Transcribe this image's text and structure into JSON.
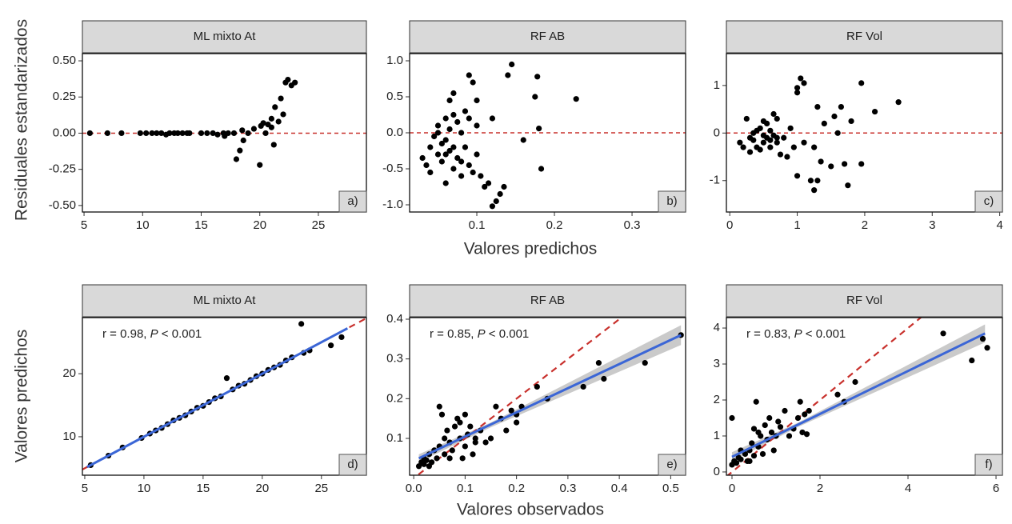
{
  "figure": {
    "rows": [
      {
        "ylabel": "Residuales estandarizados",
        "xlabel": "Valores predichos"
      },
      {
        "ylabel": "Valores predichos",
        "xlabel": "Valores observados"
      }
    ]
  },
  "chart_data": [
    {
      "type": "scatter",
      "title": "ML mixto At",
      "panel_label": "a)",
      "point_color": "#000000",
      "reference_line": {
        "y": 0,
        "color": "#c8302c"
      },
      "xlim": [
        4.86,
        29.1
      ],
      "ylim": [
        -0.545,
        0.55
      ],
      "xticks": [
        5,
        10,
        15,
        20,
        25
      ],
      "yticks": [
        {
          "value": -0.5,
          "label": "-0.50"
        },
        {
          "value": -0.25,
          "label": "-0.25"
        },
        {
          "value": 0,
          "label": "0.00"
        },
        {
          "value": 0.25,
          "label": "0.25"
        },
        {
          "value": 0.5,
          "label": "0.50"
        }
      ],
      "x": [
        5.5,
        7,
        8.2,
        9.8,
        10.3,
        10.8,
        11.2,
        11.6,
        12,
        12.3,
        12.7,
        13,
        13.4,
        13.8,
        14,
        15,
        15.5,
        16,
        16.4,
        16.9,
        17.3,
        17.8,
        18,
        18.3,
        18.6,
        19,
        19.5,
        20,
        20.1,
        20.3,
        20.7,
        21,
        21.2,
        21.3,
        21.6,
        21.8,
        22,
        22.2,
        22.4,
        22.7,
        23,
        17,
        18.5,
        21,
        20.5
      ],
      "y": [
        0,
        0,
        0,
        0,
        0,
        0,
        0,
        0,
        -0.01,
        0,
        0,
        0,
        0,
        0,
        0,
        0,
        0,
        0,
        -0.01,
        0,
        0,
        0,
        -0.18,
        -0.12,
        -0.05,
        0,
        0.03,
        -0.22,
        0.05,
        0.07,
        0.06,
        0.1,
        -0.08,
        0.18,
        0.08,
        0.24,
        0.13,
        0.35,
        0.37,
        0.33,
        0.35,
        -0.02,
        0.02,
        0.04,
        0
      ]
    },
    {
      "type": "scatter",
      "title": "RF AB",
      "panel_label": "b)",
      "point_color": "#000000",
      "reference_line": {
        "y": 0,
        "color": "#c8302c"
      },
      "xlim": [
        0.0134,
        0.369
      ],
      "ylim": [
        -1.1,
        1.1
      ],
      "xticks": [
        0.1,
        0.2,
        0.3
      ],
      "yticks": [
        {
          "value": -1,
          "label": "-1.0"
        },
        {
          "value": -0.5,
          "label": "-0.5"
        },
        {
          "value": 0,
          "label": "0.0"
        },
        0.5,
        {
          "value": 1,
          "label": "1.0"
        }
      ],
      "x": [
        0.03,
        0.035,
        0.04,
        0.04,
        0.045,
        0.05,
        0.05,
        0.055,
        0.055,
        0.06,
        0.06,
        0.06,
        0.065,
        0.065,
        0.07,
        0.07,
        0.075,
        0.075,
        0.08,
        0.08,
        0.085,
        0.085,
        0.09,
        0.09,
        0.095,
        0.095,
        0.1,
        0.1,
        0.105,
        0.11,
        0.115,
        0.12,
        0.125,
        0.13,
        0.135,
        0.05,
        0.06,
        0.07,
        0.08,
        0.09,
        0.14,
        0.145,
        0.16,
        0.175,
        0.178,
        0.18,
        0.183,
        0.228,
        0.12,
        0.1,
        0.065,
        0.07
      ],
      "y": [
        -0.35,
        -0.45,
        -0.2,
        -0.55,
        -0.05,
        0.1,
        -0.3,
        -0.15,
        -0.4,
        0.2,
        -0.1,
        -0.7,
        0.05,
        -0.25,
        0.25,
        -0.5,
        0.15,
        -0.35,
        0,
        -0.6,
        0.3,
        -0.2,
        0.8,
        -0.45,
        0.7,
        -0.55,
        0.1,
        -0.3,
        -0.6,
        -0.75,
        -0.7,
        0.2,
        -0.95,
        -0.85,
        -0.75,
        0,
        -0.3,
        -0.2,
        -0.4,
        0.2,
        0.8,
        0.95,
        -0.1,
        0.5,
        0.78,
        0.06,
        -0.5,
        0.47,
        -1.02,
        0.45,
        0.45,
        0.55
      ]
    },
    {
      "type": "scatter",
      "title": "RF Vol",
      "panel_label": "c)",
      "point_color": "#000000",
      "reference_line": {
        "y": 0,
        "color": "#c8302c"
      },
      "xlim": [
        -0.05,
        4.04
      ],
      "ylim": [
        -1.66,
        1.67
      ],
      "xticks": [
        0,
        1,
        2,
        3,
        4
      ],
      "yticks": [
        -1,
        0,
        1
      ],
      "x": [
        0.15,
        0.2,
        0.25,
        0.3,
        0.35,
        0.4,
        0.45,
        0.5,
        0.5,
        0.55,
        0.55,
        0.6,
        0.6,
        0.65,
        0.65,
        0.7,
        0.7,
        0.75,
        0.8,
        0.85,
        0.9,
        0.95,
        1.0,
        1.0,
        1.05,
        1.1,
        1.1,
        1.2,
        1.25,
        1.3,
        1.3,
        1.35,
        1.4,
        1.5,
        1.55,
        1.6,
        1.65,
        1.7,
        1.75,
        1.8,
        1.95,
        1.95,
        2.15,
        2.5,
        0.4,
        0.5,
        0.3,
        0.45,
        0.35,
        0.6,
        0.7,
        1.25,
        1.0
      ],
      "y": [
        -0.2,
        -0.3,
        0.3,
        -0.4,
        -0.15,
        -0.3,
        0.1,
        -0.2,
        0.25,
        -0.1,
        0.2,
        -0.3,
        0.05,
        0.4,
        -0.05,
        -0.2,
        0.3,
        -0.45,
        -0.1,
        -0.5,
        0.1,
        -0.3,
        -0.9,
        0.95,
        1.15,
        1.05,
        -0.2,
        -1.0,
        -1.2,
        -1.0,
        0.55,
        -0.6,
        0.2,
        -0.7,
        0.35,
        0,
        0.55,
        -0.65,
        -1.1,
        0.25,
        1.05,
        -0.65,
        0.45,
        0.65,
        0.05,
        -0.05,
        -0.1,
        -0.35,
        0,
        -0.15,
        -0.1,
        -0.3,
        0.85
      ]
    },
    {
      "type": "scatter",
      "title": "ML mixto At",
      "panel_label": "d)",
      "point_color": "#000000",
      "annotation": [
        "r  = 0.98, ",
        "P",
        " < 0.001"
      ],
      "reference_line": {
        "slope": 1,
        "intercept": 0,
        "color": "#c8302c"
      },
      "fit": {
        "color": "#3b66d6",
        "x": [
          5.2,
          27.2
        ],
        "y": [
          5.2,
          27.2
        ]
      },
      "xlim": [
        4.8,
        28.8
      ],
      "ylim": [
        3.9,
        28.9
      ],
      "xticks": [
        5,
        10,
        15,
        20,
        25
      ],
      "yticks": [
        10,
        20
      ],
      "x": [
        5.5,
        7,
        8.2,
        9.8,
        10.5,
        11,
        11.5,
        12,
        12.5,
        13,
        13.5,
        14,
        14.5,
        15,
        15.5,
        16,
        16.5,
        17,
        17.5,
        18,
        18.5,
        19,
        19.5,
        20,
        20.5,
        21,
        21.5,
        22,
        22.5,
        23.3,
        23.5,
        24,
        25.8,
        26.7
      ],
      "y": [
        5.5,
        7,
        8.3,
        9.8,
        10.5,
        11,
        11.4,
        12,
        12.6,
        13,
        13.4,
        14,
        14.6,
        14.9,
        15.5,
        16.1,
        16.4,
        19.3,
        17.5,
        18.1,
        18.4,
        19,
        19.6,
        20,
        20.6,
        21,
        21.4,
        22.1,
        22.6,
        27.9,
        23.3,
        23.7,
        24.5,
        25.8
      ]
    },
    {
      "type": "scatter",
      "title": "RF AB",
      "panel_label": "e)",
      "point_color": "#000000",
      "annotation": [
        "r  = 0.85, ",
        "P",
        " < 0.001"
      ],
      "reference_line": {
        "slope": 1,
        "intercept": 0,
        "color": "#c8302c"
      },
      "fit": {
        "color": "#3b66d6",
        "x": [
          0.01,
          0.52
        ],
        "y": [
          0.05,
          0.36
        ]
      },
      "band": {
        "color": "#bdbdbd",
        "x": [
          0.01,
          0.15,
          0.52
        ],
        "lower": [
          0.04,
          0.128,
          0.335
        ],
        "upper": [
          0.06,
          0.14,
          0.385
        ]
      },
      "xlim": [
        -0.008,
        0.529
      ],
      "ylim": [
        0.0074,
        0.404
      ],
      "xticks": [
        {
          "value": 0,
          "label": "0.0"
        },
        0.1,
        0.2,
        0.3,
        0.4,
        0.5
      ],
      "yticks": [
        0.1,
        0.2,
        0.3,
        0.4
      ],
      "x": [
        0.01,
        0.015,
        0.02,
        0.02,
        0.025,
        0.03,
        0.035,
        0.04,
        0.045,
        0.05,
        0.05,
        0.055,
        0.06,
        0.06,
        0.065,
        0.07,
        0.075,
        0.08,
        0.085,
        0.09,
        0.095,
        0.1,
        0.1,
        0.105,
        0.11,
        0.115,
        0.12,
        0.13,
        0.14,
        0.15,
        0.16,
        0.17,
        0.18,
        0.19,
        0.2,
        0.21,
        0.24,
        0.26,
        0.33,
        0.36,
        0.37,
        0.45,
        0.52,
        0.03,
        0.07,
        0.09,
        0.12,
        0.2
      ],
      "y": [
        0.03,
        0.04,
        0.035,
        0.05,
        0.045,
        0.06,
        0.04,
        0.07,
        0.05,
        0.18,
        0.08,
        0.16,
        0.06,
        0.1,
        0.12,
        0.09,
        0.07,
        0.13,
        0.15,
        0.1,
        0.05,
        0.16,
        0.08,
        0.11,
        0.13,
        0.06,
        0.1,
        0.12,
        0.09,
        0.1,
        0.18,
        0.15,
        0.12,
        0.17,
        0.14,
        0.18,
        0.23,
        0.2,
        0.23,
        0.29,
        0.25,
        0.29,
        0.36,
        0.03,
        0.05,
        0.14,
        0.09,
        0.16
      ]
    },
    {
      "type": "scatter",
      "title": "RF Vol",
      "panel_label": "f)",
      "point_color": "#000000",
      "annotation": [
        "r  = 0.83, ",
        "P",
        " < 0.001"
      ],
      "reference_line": {
        "slope": 1,
        "intercept": 0,
        "color": "#c8302c"
      },
      "fit": {
        "color": "#3b66d6",
        "x": [
          0,
          5.75
        ],
        "y": [
          0.42,
          3.85
        ]
      },
      "band": {
        "color": "#bdbdbd",
        "x": [
          0,
          1.5,
          5.75
        ],
        "lower": [
          0.3,
          1.25,
          3.6
        ],
        "upper": [
          0.55,
          1.37,
          4.1
        ]
      },
      "xlim": [
        -0.127,
        6.145
      ],
      "ylim": [
        -0.09,
        4.29
      ],
      "xticks": [
        0,
        2,
        4,
        6
      ],
      "yticks": [
        0,
        1,
        2,
        3,
        4
      ],
      "x": [
        0,
        0,
        0.05,
        0.1,
        0.15,
        0.2,
        0.3,
        0.35,
        0.4,
        0.45,
        0.5,
        0.5,
        0.55,
        0.6,
        0.65,
        0.7,
        0.75,
        0.8,
        0.85,
        0.9,
        0.95,
        1.0,
        1.05,
        1.1,
        1.2,
        1.3,
        1.4,
        1.5,
        1.55,
        1.6,
        1.65,
        1.7,
        1.75,
        2.4,
        2.55,
        2.8,
        4.8,
        5.45,
        5.7,
        5.8,
        0.2,
        0.4,
        0.6
      ],
      "y": [
        0.2,
        1.5,
        0.3,
        0.25,
        0.4,
        0.35,
        0.5,
        0.3,
        0.6,
        0.8,
        1.2,
        0.45,
        1.95,
        0.7,
        1.0,
        0.5,
        1.3,
        0.9,
        1.5,
        1.1,
        0.6,
        1.0,
        1.4,
        1.25,
        1.7,
        1.0,
        1.2,
        1.5,
        1.95,
        1.1,
        1.6,
        1.05,
        1.7,
        2.15,
        1.95,
        2.5,
        3.85,
        3.1,
        3.7,
        3.45,
        0.6,
        0.3,
        1.1
      ]
    }
  ]
}
